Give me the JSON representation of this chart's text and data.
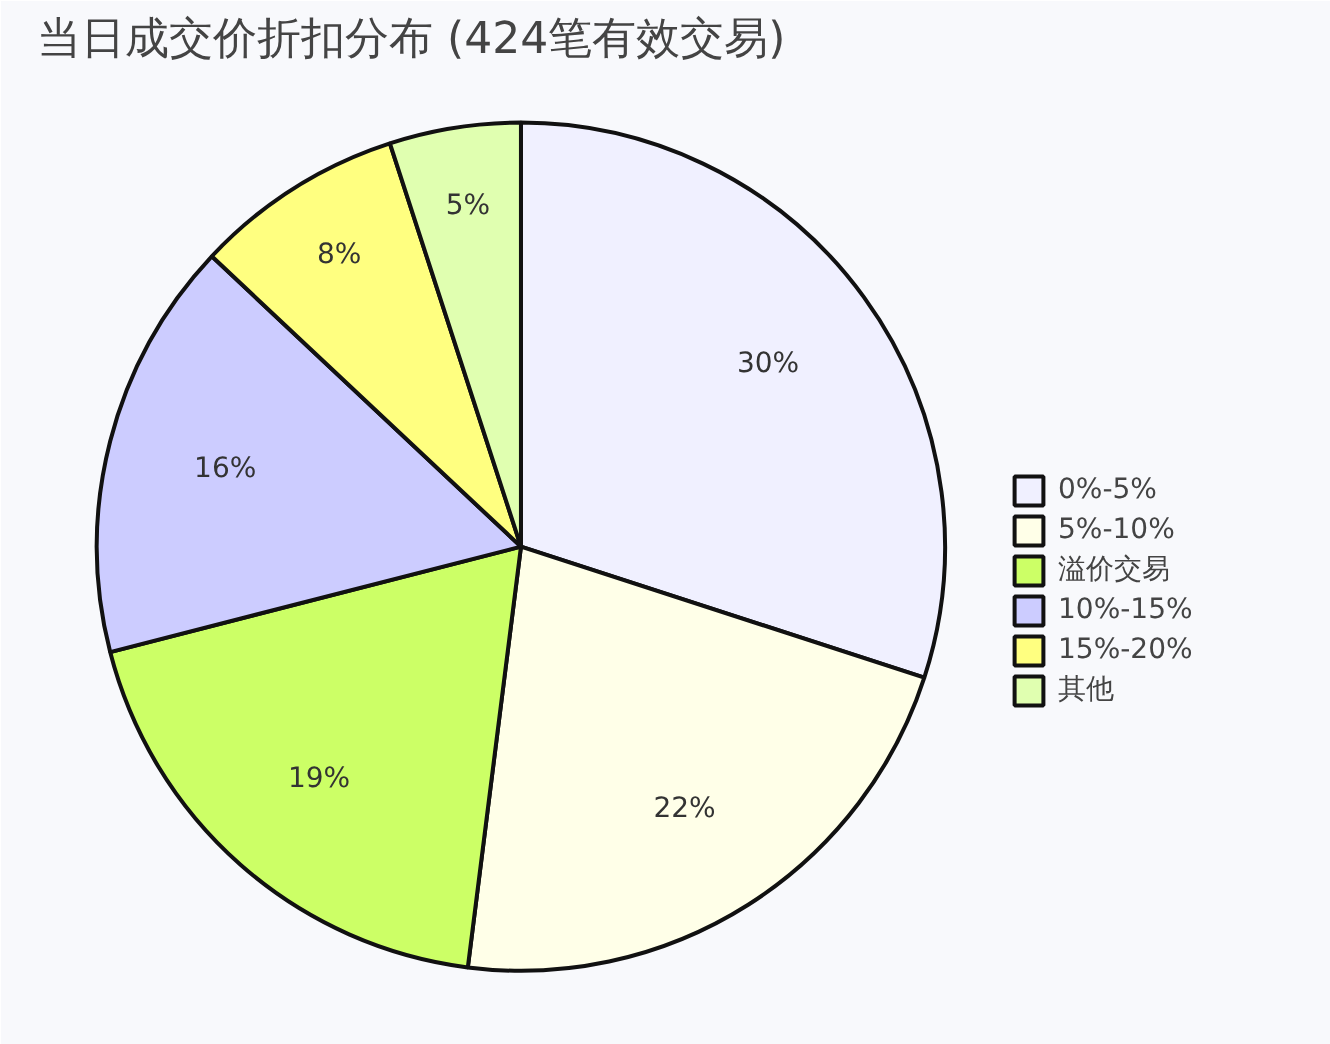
{
  "chart_data": {
    "type": "pie",
    "title": "当日成交价折扣分布 (424笔有效交易)",
    "categories": [
      "0%-5%",
      "5%-10%",
      "溢价交易",
      "10%-15%",
      "15%-20%",
      "其他"
    ],
    "values": [
      30,
      22,
      19,
      16,
      8,
      5
    ],
    "colors": [
      "#f0f0ff",
      "#ffffe8",
      "#ccff66",
      "#ccccff",
      "#ffff80",
      "#e0ffb0"
    ],
    "value_labels": [
      "30%",
      "22%",
      "19%",
      "16%",
      "8%",
      "5%"
    ],
    "legend": "right"
  }
}
